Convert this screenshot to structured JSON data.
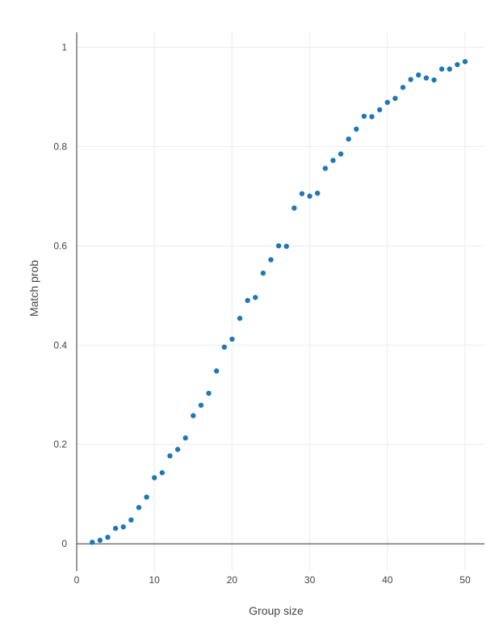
{
  "chart_data": {
    "type": "scatter",
    "xlabel": "Group size",
    "ylabel": "Match prob",
    "xlim": [
      0,
      52.5
    ],
    "ylim": [
      -0.055,
      1.03
    ],
    "x_ticks": [
      0,
      10,
      20,
      30,
      40,
      50
    ],
    "y_ticks": [
      0,
      0.2,
      0.4,
      0.6,
      0.8,
      1
    ],
    "x_tick_labels": [
      "0",
      "10",
      "20",
      "30",
      "40",
      "50"
    ],
    "y_tick_labels": [
      "0",
      "0.2",
      "0.4",
      "0.6",
      "0.8",
      "1"
    ],
    "grid": true,
    "point_color": "#1f77b4",
    "series": [
      {
        "x": [
          2,
          3,
          4,
          5,
          6,
          7,
          8,
          9,
          10,
          11,
          12,
          13,
          14,
          15,
          16,
          17,
          18,
          19,
          20,
          21,
          22,
          23,
          24,
          25,
          26,
          27,
          28,
          29,
          30,
          31,
          32,
          33,
          34,
          35,
          36,
          37,
          38,
          39,
          40,
          41,
          42,
          43,
          44,
          45,
          46,
          47,
          48,
          49,
          50
        ],
        "y": [
          0.003,
          0.007,
          0.013,
          0.031,
          0.034,
          0.048,
          0.073,
          0.094,
          0.133,
          0.143,
          0.177,
          0.19,
          0.213,
          0.258,
          0.279,
          0.303,
          0.348,
          0.396,
          0.412,
          0.454,
          0.49,
          0.496,
          0.545,
          0.572,
          0.6,
          0.599,
          0.676,
          0.705,
          0.7,
          0.706,
          0.756,
          0.772,
          0.785,
          0.815,
          0.835,
          0.861,
          0.86,
          0.874,
          0.889,
          0.897,
          0.919,
          0.935,
          0.944,
          0.938,
          0.934,
          0.956,
          0.956,
          0.965,
          0.971
        ]
      }
    ]
  }
}
